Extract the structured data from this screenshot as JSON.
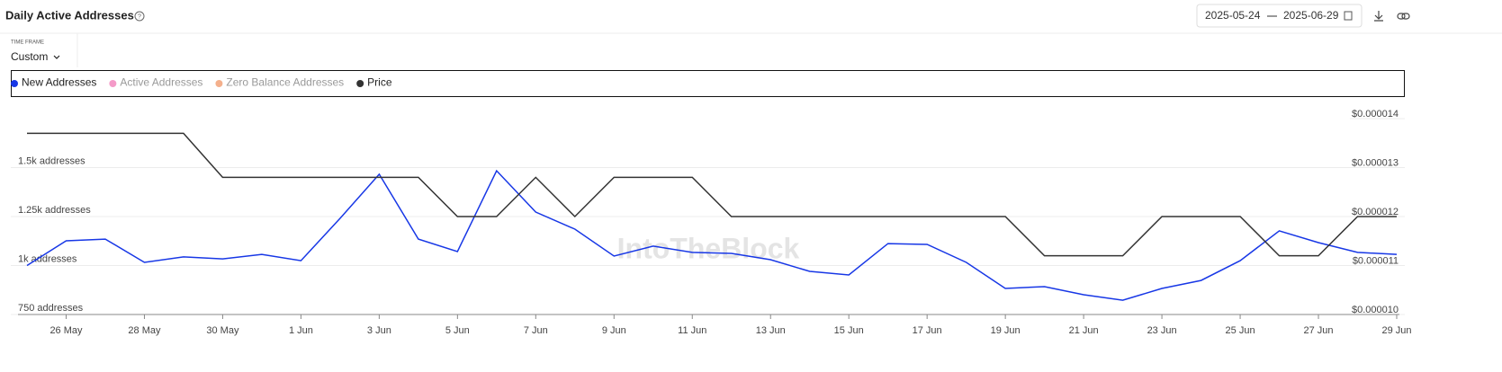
{
  "header": {
    "title": "Daily Active Addresses",
    "date_from": "2025-05-24",
    "date_to": "2025-06-29",
    "time_frame_label": "TIME FRAME",
    "time_frame": "Custom"
  },
  "chart_data": {
    "type": "line",
    "watermark": "IntoTheBlock",
    "categories": [
      null,
      "26 May",
      null,
      "28 May",
      null,
      "30 May",
      null,
      "1 Jun",
      null,
      "3 Jun",
      null,
      "5 Jun",
      null,
      "7 Jun",
      null,
      "9 Jun",
      null,
      "11 Jun",
      null,
      "13 Jun",
      null,
      "15 Jun",
      null,
      "17 Jun",
      null,
      "19 Jun",
      null,
      "21 Jun",
      null,
      "23 Jun",
      null,
      "25 Jun",
      null,
      "27 Jun",
      null,
      "29 Jun"
    ],
    "series": [
      {
        "name": "New Addresses",
        "color": "#1737e6",
        "visible": true,
        "axis": "y",
        "values": [
          1000,
          1126,
          1135,
          1016,
          1044,
          1034,
          1057,
          1025,
          1241,
          1466,
          1135,
          1071,
          1484,
          1273,
          1186,
          1048,
          1099,
          1067,
          1062,
          1030,
          970,
          952,
          1112,
          1108,
          1016,
          883,
          892,
          851,
          823,
          883,
          924,
          1025,
          1177,
          1117,
          1067,
          1057
        ]
      },
      {
        "name": "Active Addresses",
        "color": "#f49ac8",
        "visible": false
      },
      {
        "name": "Zero Balance Addresses",
        "color": "#f4b08c",
        "visible": false
      },
      {
        "name": "Price",
        "color": "#333333",
        "visible": true,
        "axis": "y2",
        "values": [
          1.37e-05,
          1.37e-05,
          1.37e-05,
          1.37e-05,
          1.37e-05,
          1.28e-05,
          1.28e-05,
          1.28e-05,
          1.28e-05,
          1.28e-05,
          1.28e-05,
          1.2e-05,
          1.2e-05,
          1.28e-05,
          1.2e-05,
          1.28e-05,
          1.28e-05,
          1.28e-05,
          1.2e-05,
          1.2e-05,
          1.2e-05,
          1.2e-05,
          1.2e-05,
          1.2e-05,
          1.2e-05,
          1.2e-05,
          1.12e-05,
          1.12e-05,
          1.12e-05,
          1.2e-05,
          1.2e-05,
          1.2e-05,
          1.12e-05,
          1.12e-05,
          1.2e-05,
          1.2e-05
        ]
      }
    ],
    "ylim": [
      750,
      1750
    ],
    "yticks": [
      {
        "value": 750,
        "label": "750 addresses"
      },
      {
        "value": 1000,
        "label": "1k addresses"
      },
      {
        "value": 1250,
        "label": "1.25k addresses"
      },
      {
        "value": 1500,
        "label": "1.5k addresses"
      }
    ],
    "y2lim": [
      1e-05,
      1.4e-05
    ],
    "y2ticks": [
      {
        "value": 1e-05,
        "label": "$0.000010"
      },
      {
        "value": 1.1e-05,
        "label": "$0.000011"
      },
      {
        "value": 1.2e-05,
        "label": "$0.000012"
      },
      {
        "value": 1.3e-05,
        "label": "$0.000013"
      },
      {
        "value": 1.4e-05,
        "label": "$0.000014"
      }
    ],
    "grid": true
  }
}
